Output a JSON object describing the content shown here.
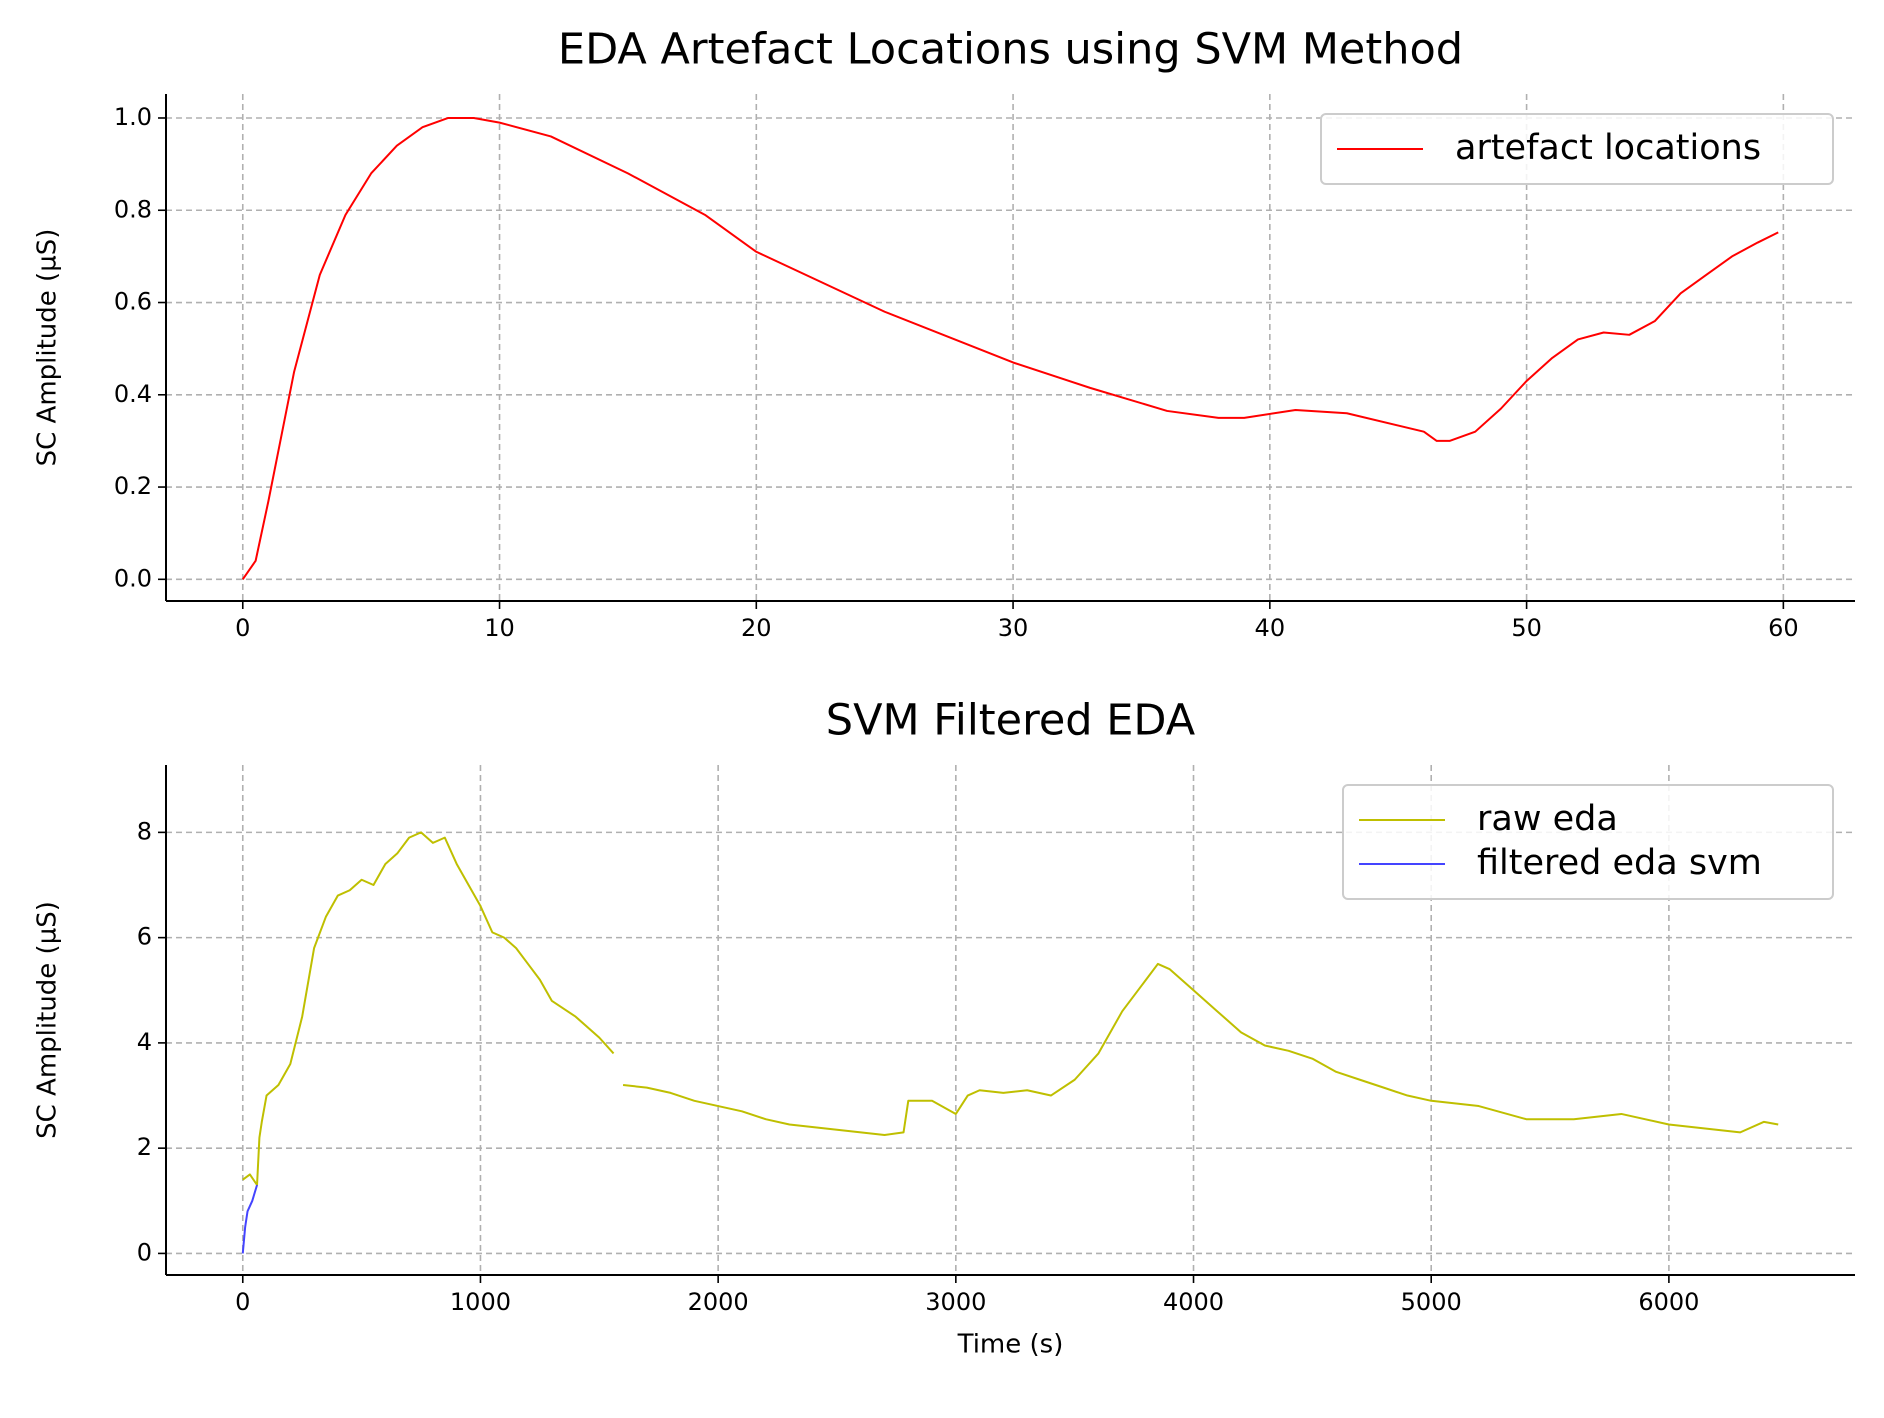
{
  "chart_data": [
    {
      "type": "line",
      "title": "EDA Artefact Locations using SVM Method",
      "ylabel": "SC Amplitude (µS)",
      "xlim": [
        -2.99,
        62.79
      ],
      "ylim": [
        -0.047,
        1.052
      ],
      "xticks": [
        0,
        10,
        20,
        30,
        40,
        50,
        60
      ],
      "yticks": [
        {
          "value": 0,
          "label": "0.0"
        },
        {
          "value": 0.2,
          "label": "0.2"
        },
        {
          "value": 0.4,
          "label": "0.4"
        },
        {
          "value": 0.6,
          "label": "0.6"
        },
        {
          "value": 0.8,
          "label": "0.8"
        },
        {
          "value": 1,
          "label": "1.0"
        }
      ],
      "grid": true,
      "legend": "upper right",
      "series": [
        {
          "name": "artefact locations",
          "color": "#ff0000",
          "x": [
            0,
            0.25,
            0.5,
            1,
            1.5,
            2,
            3,
            4,
            5,
            6,
            7,
            8,
            9,
            10,
            12,
            15,
            18,
            20,
            25,
            30,
            33,
            36,
            38,
            39,
            41,
            43,
            46,
            46.5,
            47,
            48,
            49,
            50,
            51,
            52,
            53,
            54,
            55,
            56,
            57,
            58,
            59,
            59.8
          ],
          "values": [
            0,
            0.02,
            0.04,
            0.17,
            0.31,
            0.45,
            0.66,
            0.79,
            0.88,
            0.94,
            0.98,
            1.0,
            1.0,
            0.99,
            0.96,
            0.88,
            0.79,
            0.71,
            0.58,
            0.47,
            0.415,
            0.365,
            0.35,
            0.35,
            0.367,
            0.36,
            0.32,
            0.3,
            0.3,
            0.32,
            0.37,
            0.43,
            0.48,
            0.52,
            0.535,
            0.53,
            0.56,
            0.62,
            0.66,
            0.7,
            0.73,
            0.752
          ]
        }
      ]
    },
    {
      "type": "line",
      "title": "SVM Filtered EDA",
      "xlabel": "Time (s)",
      "ylabel": "SC Amplitude (µS)",
      "xlim": [
        -323,
        6783
      ],
      "ylim": [
        -0.41,
        9.28
      ],
      "xticks": [
        0,
        1000,
        2000,
        3000,
        4000,
        5000,
        6000
      ],
      "yticks": [
        0,
        2,
        4,
        6,
        8
      ],
      "grid": true,
      "legend": "upper right",
      "series": [
        {
          "name": "raw eda",
          "color": "#bfbf00",
          "x": [
            0,
            30,
            60,
            70,
            80,
            100,
            150,
            200,
            250,
            300,
            350,
            400,
            450,
            500,
            550,
            600,
            650,
            700,
            750,
            800,
            850,
            900,
            950,
            1000,
            1050,
            1100,
            1150,
            1200,
            1250,
            1300,
            1400,
            1500,
            1560,
            1580,
            1600,
            1700,
            1800,
            1900,
            2000,
            2100,
            2200,
            2300,
            2400,
            2500,
            2600,
            2700,
            2780,
            2800,
            2900,
            3000,
            3050,
            3100,
            3200,
            3300,
            3400,
            3500,
            3600,
            3700,
            3800,
            3850,
            3900,
            4000,
            4100,
            4200,
            4300,
            4400,
            4500,
            4600,
            4700,
            4800,
            4900,
            5000,
            5200,
            5400,
            5600,
            5800,
            6000,
            6200,
            6300,
            6400,
            6460
          ],
          "values": [
            1.4,
            1.5,
            1.3,
            2.2,
            2.5,
            3.0,
            3.2,
            3.6,
            4.5,
            5.8,
            6.4,
            6.8,
            6.9,
            7.1,
            7.0,
            7.4,
            7.6,
            7.9,
            8.0,
            7.8,
            7.9,
            7.4,
            7.0,
            6.6,
            6.1,
            6.0,
            5.8,
            5.5,
            5.2,
            4.8,
            4.5,
            4.1,
            3.8,
            null,
            3.2,
            3.15,
            3.05,
            2.9,
            2.8,
            2.7,
            2.55,
            2.45,
            2.4,
            2.35,
            2.3,
            2.25,
            2.3,
            2.9,
            2.9,
            2.65,
            3.0,
            3.1,
            3.05,
            3.1,
            3.0,
            3.3,
            3.8,
            4.6,
            5.2,
            5.5,
            5.4,
            5.0,
            4.6,
            4.2,
            3.95,
            3.85,
            3.7,
            3.45,
            3.3,
            3.15,
            3.0,
            2.9,
            2.8,
            2.55,
            2.55,
            2.65,
            2.45,
            2.35,
            2.3,
            2.5,
            2.45
          ]
        },
        {
          "name": "filtered eda svm",
          "color": "#4444ff",
          "x": [
            0,
            10,
            20,
            40,
            60
          ],
          "values": [
            0,
            0.5,
            0.8,
            1.0,
            1.3
          ]
        }
      ]
    }
  ]
}
